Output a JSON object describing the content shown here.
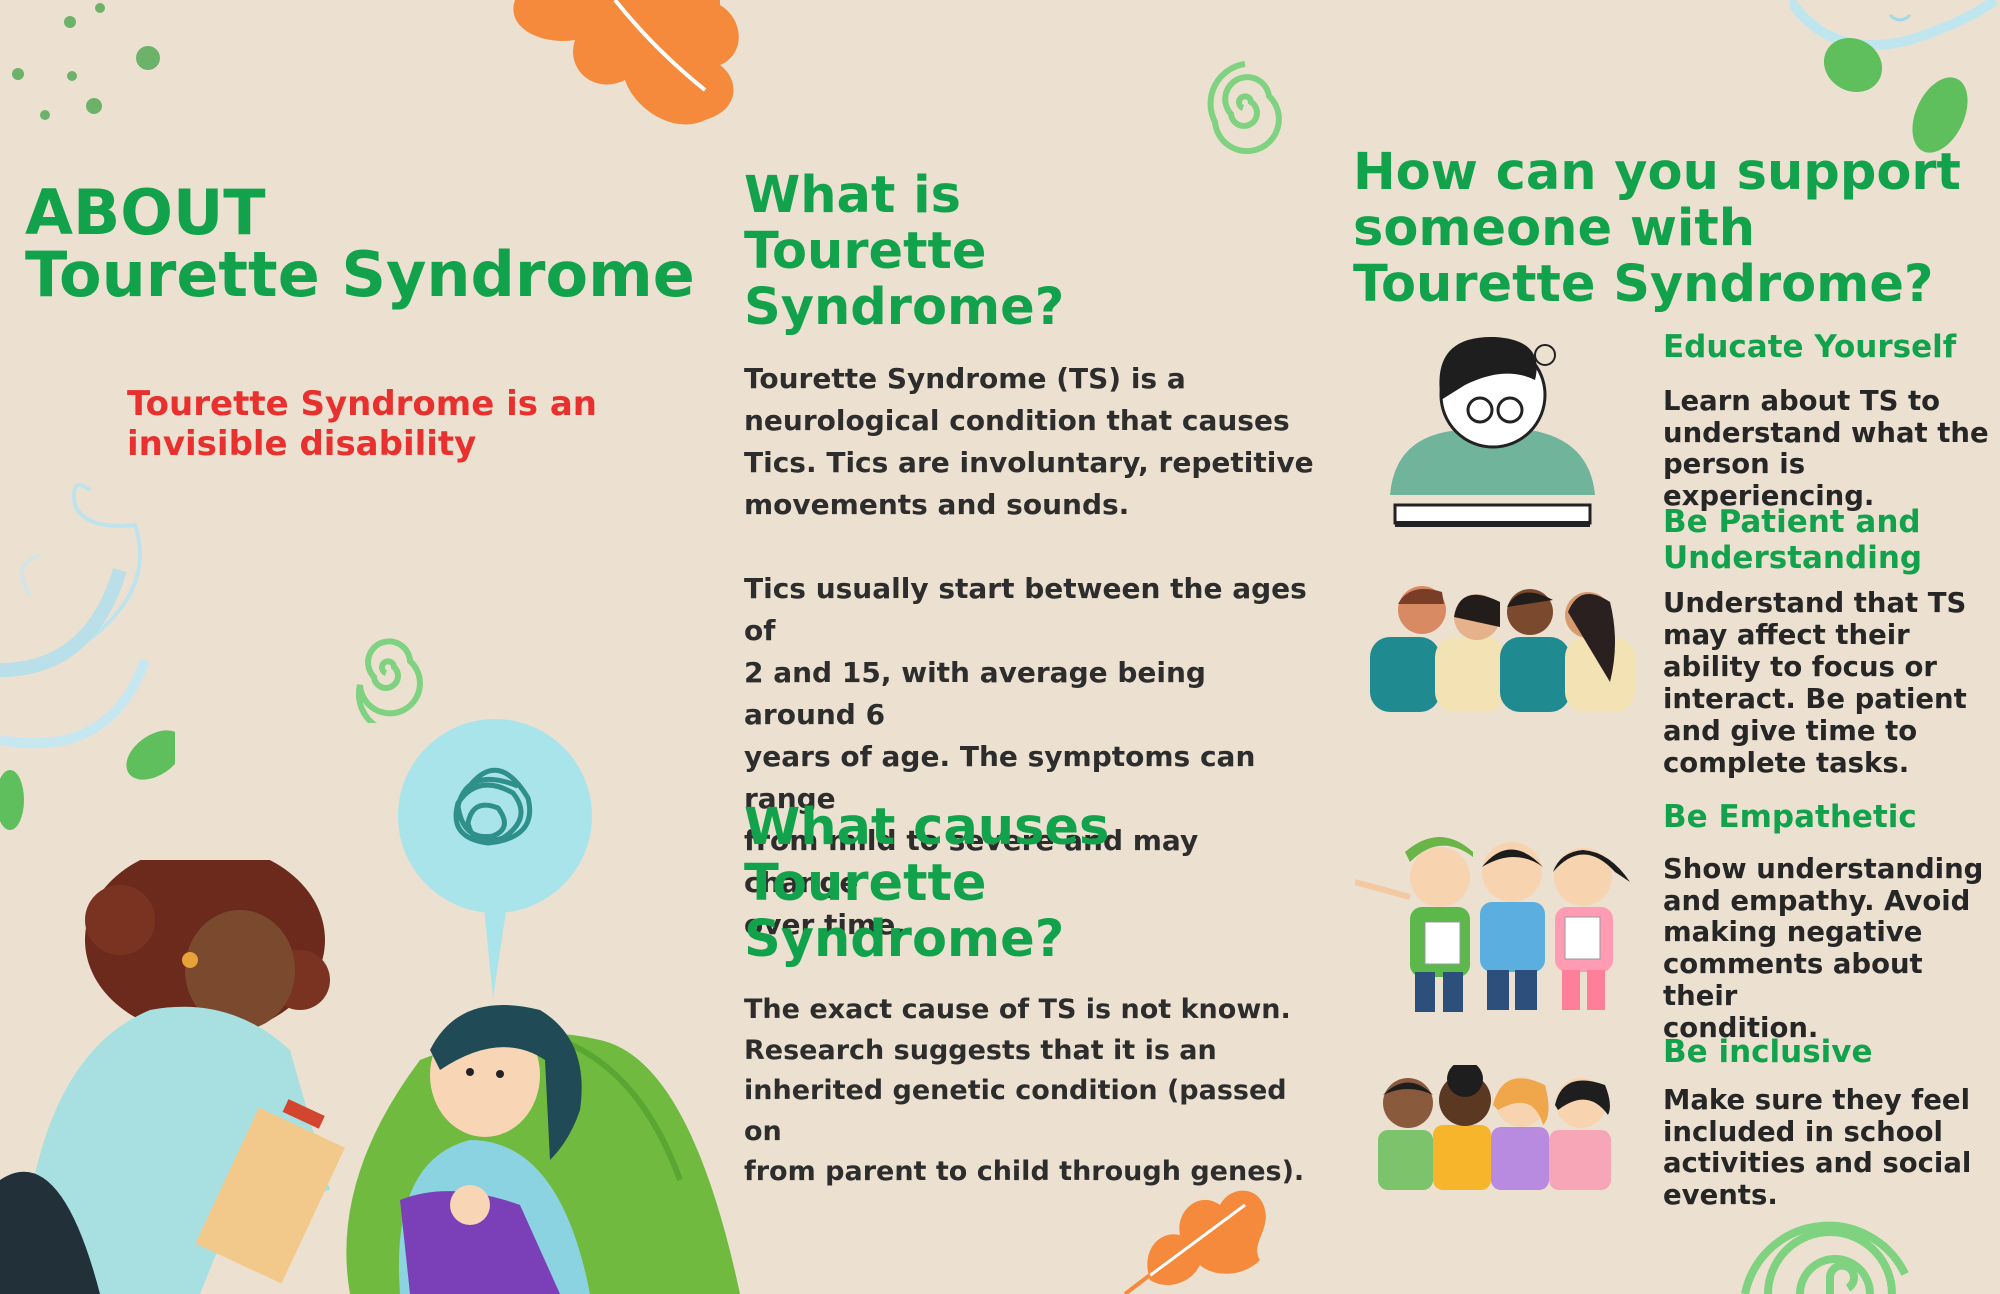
{
  "colors": {
    "background": "#ece1d1",
    "heading_green": "#12a24b",
    "accent_red": "#e8312f",
    "body_text": "#2d2d2d",
    "orange_leaf": "#f58a3c",
    "spiral_green": "#7fd27f",
    "light_blue": "#a8e6ea"
  },
  "left": {
    "title_line1": "ABOUT",
    "title_line2": "Tourette Syndrome",
    "subtitle_line1": "Tourette Syndrome is an",
    "subtitle_line2": "invisible disability"
  },
  "middle": {
    "what_is": {
      "heading_line1": "What is",
      "heading_line2": "Tourette Syndrome?",
      "para1_lines": [
        "Tourette Syndrome (TS) is a",
        "neurological condition that causes",
        "Tics. Tics are involuntary, repetitive",
        "movements and sounds."
      ],
      "para2_lines": [
        "Tics usually start between the ages of",
        "2 and 15, with average being around 6",
        "years of age. The symptoms can range",
        "from mild to severe and may change",
        "over time."
      ]
    },
    "causes": {
      "heading_line1": "What causes",
      "heading_line2": "Tourette Syndrome?",
      "para_lines": [
        "The exact cause of TS is not known.",
        "Research suggests that it is an",
        "inherited genetic condition (passed on",
        "from parent to child through genes)."
      ]
    }
  },
  "right": {
    "heading_lines": [
      "How can you support",
      "someone with",
      "Tourette Syndrome?"
    ],
    "tips": [
      {
        "title_lines": [
          "Educate Yourself"
        ],
        "body_lines": [
          "Learn about TS to",
          "understand what the",
          "person is experiencing."
        ],
        "icon": "reading-girl-icon"
      },
      {
        "title_lines": [
          "Be Patient and",
          "Understanding"
        ],
        "body_lines": [
          "Understand that TS",
          "may affect their",
          "ability to focus or",
          "interact. Be patient",
          "and give time to",
          "complete tasks."
        ],
        "icon": "group-hug-icon"
      },
      {
        "title_lines": [
          "Be Empathetic"
        ],
        "body_lines": [
          "Show understanding",
          "and empathy. Avoid",
          "making negative",
          "comments about their",
          "condition."
        ],
        "icon": "three-kids-icon"
      },
      {
        "title_lines": [
          "Be inclusive"
        ],
        "body_lines": [
          "Make sure they feel",
          "included in school",
          "activities and social",
          "events."
        ],
        "icon": "diverse-kids-icon"
      }
    ]
  }
}
